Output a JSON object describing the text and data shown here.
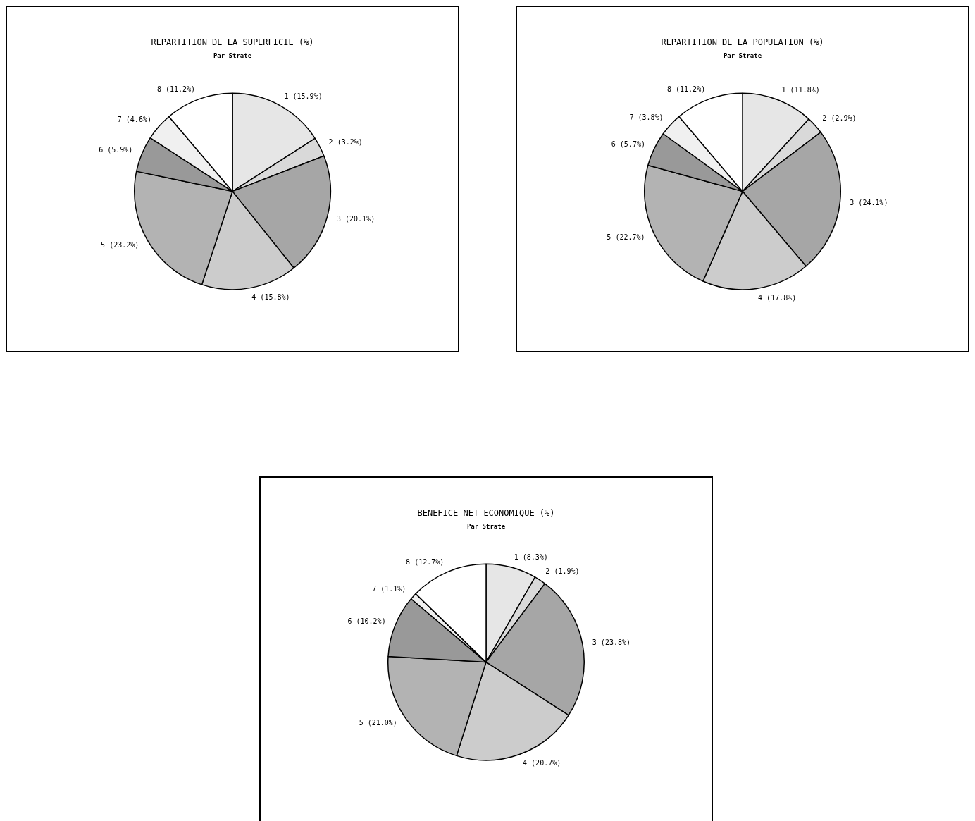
{
  "chart_data": [
    {
      "type": "pie",
      "title": "REPARTITION DE LA SUPERFICIE (%)",
      "subtitle": "Par Strate",
      "categories": [
        "1",
        "2",
        "3",
        "4",
        "5",
        "6",
        "7",
        "8"
      ],
      "values": [
        15.9,
        3.2,
        20.1,
        15.8,
        23.2,
        5.9,
        4.6,
        11.2
      ],
      "value_labels": [
        "(15.9%)",
        "(3.2%)",
        "(20.1%)",
        "(15.8%)",
        "(23.2%)",
        "(5.9%)",
        "(4.6%)",
        "(11.2%)"
      ],
      "colors": [
        "#e6e6e6",
        "#d9d9d9",
        "#a6a6a6",
        "#cccccc",
        "#b3b3b3",
        "#999999",
        "#f0f0f0",
        "#ffffff"
      ],
      "legend": false
    },
    {
      "type": "pie",
      "title": "REPARTITION DE LA POPULATION (%)",
      "subtitle": "Par Strate",
      "categories": [
        "1",
        "2",
        "3",
        "4",
        "5",
        "6",
        "7",
        "8"
      ],
      "values": [
        11.8,
        2.9,
        24.1,
        17.8,
        22.7,
        5.7,
        3.8,
        11.2
      ],
      "value_labels": [
        "(11.8%)",
        "(2.9%)",
        "(24.1%)",
        "(17.8%)",
        "(22.7%)",
        "(5.7%)",
        "(3.8%)",
        "(11.2%)"
      ],
      "colors": [
        "#e6e6e6",
        "#d9d9d9",
        "#a6a6a6",
        "#cccccc",
        "#b3b3b3",
        "#999999",
        "#f0f0f0",
        "#ffffff"
      ],
      "legend": false
    },
    {
      "type": "pie",
      "title": "BENEFICE NET ECONOMIQUE (%)",
      "subtitle": "Par Strate",
      "categories": [
        "1",
        "2",
        "3",
        "4",
        "5",
        "6",
        "7",
        "8"
      ],
      "values": [
        8.3,
        1.9,
        23.8,
        20.7,
        21.0,
        10.2,
        1.1,
        12.7
      ],
      "value_labels": [
        "(8.3%)",
        "(1.9%)",
        "(23.8%)",
        "(20.7%)",
        "(21.0%)",
        "(10.2%)",
        "(1.1%)",
        "(12.7%)"
      ],
      "colors": [
        "#e6e6e6",
        "#d9d9d9",
        "#a6a6a6",
        "#cccccc",
        "#b3b3b3",
        "#999999",
        "#f0f0f0",
        "#ffffff"
      ],
      "legend": false
    }
  ]
}
